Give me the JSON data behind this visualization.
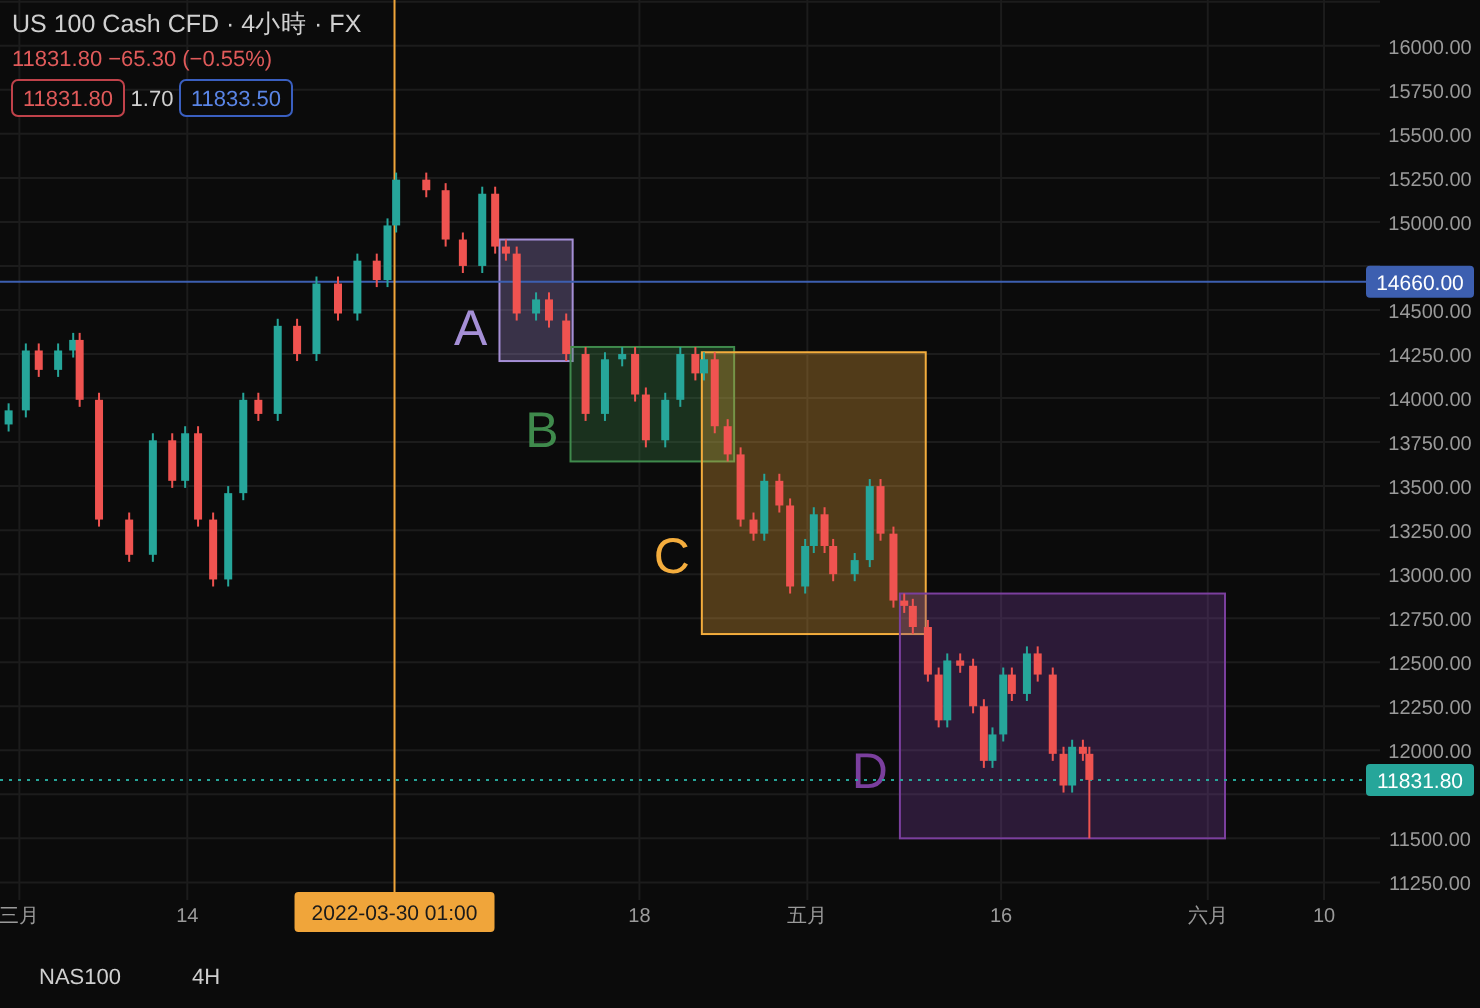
{
  "chart_data": {
    "type": "candlestick",
    "title": "US 100 Cash CFD · 4小時 · FX",
    "subtitle": "11831.80 −65.30 (−0.55%)",
    "annotations": [
      "11831.80",
      "1.70",
      "11833.50",
      "NAS100",
      "4H"
    ],
    "x": [
      "2022-02-28T04:00",
      "2022-03-01T12:00",
      "2022-03-02T12:00",
      "2022-03-04T00:00",
      "2022-03-05T04:00",
      "2022-03-05T16:00",
      "2022-03-07T04:00",
      "2022-03-09T12:00",
      "2022-03-11T08:00",
      "2022-03-12T20:00",
      "2022-03-13T20:00",
      "2022-03-14T20:00",
      "2022-03-16T00:00",
      "2022-03-17T04:00",
      "2022-03-18T08:00",
      "2022-03-19T12:00",
      "2022-03-21T00:00",
      "2022-03-22T12:00",
      "2022-03-24T00:00",
      "2022-03-25T16:00",
      "2022-03-27T04:00",
      "2022-03-28T16:00",
      "2022-03-29T12:00",
      "2022-03-30T04:00",
      "2022-04-01T12:00",
      "2022-04-03T00:00",
      "2022-04-04T08:00",
      "2022-04-05T20:00",
      "2022-04-06T20:00",
      "2022-04-07T16:00",
      "2022-04-08T12:00",
      "2022-04-10T00:00",
      "2022-04-11T00:00",
      "2022-04-12T08:00",
      "2022-04-13T20:00",
      "2022-04-15T08:00",
      "2022-04-16T16:00",
      "2022-04-17T16:00",
      "2022-04-18T12:00",
      "2022-04-20T00:00",
      "2022-04-21T04:00",
      "2022-04-22T08:00",
      "2022-04-23T00:00",
      "2022-04-23T20:00",
      "2022-04-24T20:00",
      "2022-04-25T20:00",
      "2022-04-26T20:00",
      "2022-04-27T16:00",
      "2022-04-28T20:00",
      "2022-04-29T16:00",
      "2022-04-30T20:00",
      "2022-05-01T12:00",
      "2022-05-02T08:00",
      "2022-05-03T00:00",
      "2022-05-04T16:00",
      "2022-05-05T20:00",
      "2022-05-06T16:00",
      "2022-05-07T16:00",
      "2022-05-08T12:00",
      "2022-05-09T04:00",
      "2022-05-10T08:00",
      "2022-05-11T04:00",
      "2022-05-11T20:00",
      "2022-05-12T20:00",
      "2022-05-13T20:00",
      "2022-05-14T16:00",
      "2022-05-15T08:00",
      "2022-05-16T04:00",
      "2022-05-16T20:00",
      "2022-05-18T00:00",
      "2022-05-18T20:00",
      "2022-05-20T00:00",
      "2022-05-20T20:00",
      "2022-05-21T12:00",
      "2022-05-22T08:00",
      "2022-05-22T20:00"
    ],
    "ohlc": [
      [
        13850,
        13970,
        13810,
        13930
      ],
      [
        13930,
        14310,
        13890,
        14270
      ],
      [
        14270,
        14310,
        14120,
        14160
      ],
      [
        14160,
        14310,
        14120,
        14270
      ],
      [
        14270,
        14370,
        14230,
        14330
      ],
      [
        14330,
        14370,
        13950,
        13990
      ],
      [
        13990,
        14030,
        13270,
        13310
      ],
      [
        13310,
        13350,
        13070,
        13110
      ],
      [
        13110,
        13800,
        13070,
        13760
      ],
      [
        13760,
        13800,
        13490,
        13530
      ],
      [
        13530,
        13840,
        13490,
        13800
      ],
      [
        13800,
        13840,
        13270,
        13310
      ],
      [
        13310,
        13350,
        12930,
        12970
      ],
      [
        12970,
        13500,
        12930,
        13460
      ],
      [
        13460,
        14030,
        13420,
        13990
      ],
      [
        13990,
        14030,
        13870,
        13910
      ],
      [
        13910,
        14450,
        13870,
        14410
      ],
      [
        14410,
        14450,
        14210,
        14250
      ],
      [
        14250,
        14690,
        14210,
        14650
      ],
      [
        14650,
        14690,
        14440,
        14480
      ],
      [
        14480,
        14820,
        14440,
        14780
      ],
      [
        14780,
        14820,
        14630,
        14670
      ],
      [
        14670,
        15020,
        14630,
        14980
      ],
      [
        14980,
        15280,
        14940,
        15240
      ],
      [
        15240,
        15280,
        15140,
        15180
      ],
      [
        15180,
        15220,
        14860,
        14900
      ],
      [
        14900,
        14940,
        14710,
        14750
      ],
      [
        14750,
        15200,
        14710,
        15160
      ],
      [
        15160,
        15200,
        14820,
        14860
      ],
      [
        14860,
        14900,
        14780,
        14820
      ],
      [
        14820,
        14860,
        14440,
        14480
      ],
      [
        14480,
        14600,
        14440,
        14560
      ],
      [
        14560,
        14600,
        14400,
        14440
      ],
      [
        14440,
        14480,
        14210,
        14250
      ],
      [
        14250,
        14290,
        13870,
        13910
      ],
      [
        13910,
        14260,
        13870,
        14220
      ],
      [
        14220,
        14290,
        14180,
        14250
      ],
      [
        14250,
        14290,
        13980,
        14020
      ],
      [
        14020,
        14060,
        13720,
        13760
      ],
      [
        13760,
        14030,
        13720,
        13990
      ],
      [
        13990,
        14290,
        13950,
        14250
      ],
      [
        14250,
        14290,
        14100,
        14140
      ],
      [
        14140,
        14260,
        14100,
        14220
      ],
      [
        14220,
        14260,
        13800,
        13840
      ],
      [
        13840,
        13880,
        13640,
        13680
      ],
      [
        13680,
        13720,
        13270,
        13310
      ],
      [
        13310,
        13350,
        13190,
        13230
      ],
      [
        13230,
        13570,
        13190,
        13530
      ],
      [
        13530,
        13570,
        13350,
        13390
      ],
      [
        13390,
        13430,
        12890,
        12930
      ],
      [
        12930,
        13200,
        12890,
        13160
      ],
      [
        13160,
        13380,
        13120,
        13340
      ],
      [
        13340,
        13380,
        13120,
        13160
      ],
      [
        13160,
        13200,
        12960,
        13000
      ],
      [
        13000,
        13120,
        12960,
        13080
      ],
      [
        13080,
        13540,
        13040,
        13500
      ],
      [
        13500,
        13540,
        13190,
        13230
      ],
      [
        13230,
        13270,
        12810,
        12850
      ],
      [
        12850,
        12890,
        12780,
        12820
      ],
      [
        12820,
        12860,
        12660,
        12700
      ],
      [
        12700,
        12740,
        12390,
        12430
      ],
      [
        12430,
        12470,
        12130,
        12170
      ],
      [
        12170,
        12550,
        12130,
        12510
      ],
      [
        12510,
        12550,
        12440,
        12480
      ],
      [
        12480,
        12520,
        12210,
        12250
      ],
      [
        12250,
        12290,
        11900,
        11940
      ],
      [
        11940,
        12130,
        11900,
        12090
      ],
      [
        12090,
        12470,
        12050,
        12430
      ],
      [
        12430,
        12470,
        12280,
        12320
      ],
      [
        12320,
        12590,
        12280,
        12550
      ],
      [
        12550,
        12590,
        12390,
        12430
      ],
      [
        12430,
        12470,
        11940,
        11980
      ],
      [
        11980,
        12020,
        11760,
        11800
      ],
      [
        11800,
        12060,
        11760,
        12020
      ],
      [
        12020,
        12060,
        11940,
        11980
      ],
      [
        11980,
        12020,
        11500,
        11831.8
      ]
    ],
    "xlim": [
      "2022-02-27T12:00",
      "2022-06-14T08:00"
    ],
    "xticks": [
      {
        "value": "2022-03-01",
        "label": "三月"
      },
      {
        "value": "2022-03-14",
        "label": "14"
      },
      {
        "value": "2022-04-18",
        "label": "18"
      },
      {
        "value": "2022-05-01",
        "label": "五月"
      },
      {
        "value": "2022-05-16",
        "label": "16"
      },
      {
        "value": "2022-06-01",
        "label": "六月"
      },
      {
        "value": "2022-06-10",
        "label": "10"
      }
    ],
    "ylim": [
      11150,
      16260
    ],
    "yticks": [
      {
        "value": 11250,
        "label": "11250.00"
      },
      {
        "value": 11500,
        "label": "11500.00"
      },
      {
        "value": 11750,
        "label": null
      },
      {
        "value": 12000,
        "label": "12000.00"
      },
      {
        "value": 12250,
        "label": "12250.00"
      },
      {
        "value": 12500,
        "label": "12500.00"
      },
      {
        "value": 12750,
        "label": "12750.00"
      },
      {
        "value": 13000,
        "label": "13000.00"
      },
      {
        "value": 13250,
        "label": "13250.00"
      },
      {
        "value": 13500,
        "label": "13500.00"
      },
      {
        "value": 13750,
        "label": "13750.00"
      },
      {
        "value": 14000,
        "label": "14000.00"
      },
      {
        "value": 14250,
        "label": "14250.00"
      },
      {
        "value": 14500,
        "label": "14500.00"
      },
      {
        "value": 14750,
        "label": null
      },
      {
        "value": 15000,
        "label": "15000.00"
      },
      {
        "value": 15250,
        "label": "15250.00"
      },
      {
        "value": 15500,
        "label": "15500.00"
      },
      {
        "value": 15750,
        "label": "15750.00"
      },
      {
        "value": 16000,
        "label": "16000.00"
      },
      {
        "value": 16250,
        "label": null
      }
    ],
    "grid": true,
    "ref_lines": [
      {
        "axis": "y",
        "value": 14660,
        "label": "14660.00",
        "color": "#3d5fb0"
      },
      {
        "axis": "y",
        "value": 11831.8,
        "label": "11831.80",
        "color": "#26a69a",
        "line_style": "dotted"
      },
      {
        "axis": "x",
        "value": "2022-03-30T01:00",
        "label": "2022-03-30  01:00",
        "color": "#f0a53a"
      }
    ],
    "bands": [
      {
        "axis": "x",
        "from": "2022-04-07T04:00",
        "to": "2022-04-12T20:00",
        "label": "A",
        "color": "#a58fd6"
      },
      {
        "axis": "x",
        "from": "2022-04-12T16:00",
        "to": "2022-04-25T08:00",
        "label": "B",
        "color": "#3f8a4c"
      },
      {
        "axis": "x",
        "from": "2022-04-22T20:00",
        "to": "2022-05-10T04:00",
        "label": "C",
        "color": "#f4ad3d"
      },
      {
        "axis": "x",
        "from": "2022-05-08T04:00",
        "to": "2022-06-02T08:00",
        "label": "D",
        "color": "#7b3f9e"
      }
    ]
  }
}
